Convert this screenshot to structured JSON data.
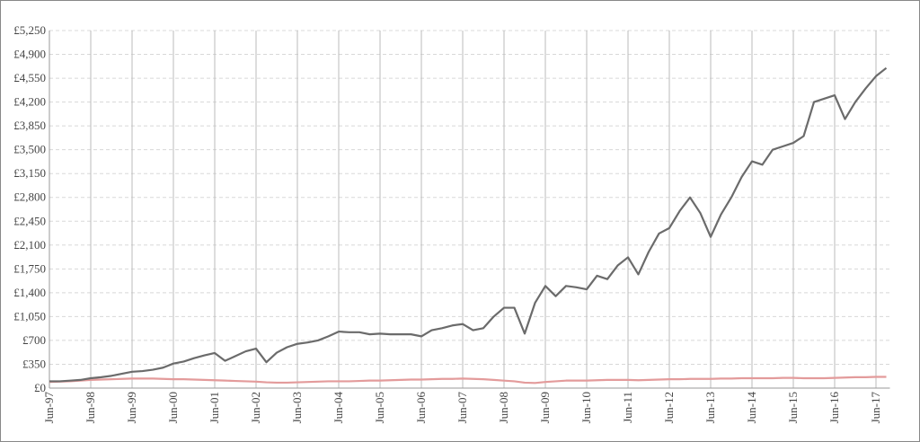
{
  "chart_data": {
    "type": "line",
    "categories": [
      "Jun-97",
      null,
      null,
      null,
      "Jun-98",
      null,
      null,
      null,
      "Jun-99",
      null,
      null,
      null,
      "Jun-00",
      null,
      null,
      null,
      "Jun-01",
      null,
      null,
      null,
      "Jun-02",
      null,
      null,
      null,
      "Jun-03",
      null,
      null,
      null,
      "Jun-04",
      null,
      null,
      null,
      "Jun-05",
      null,
      null,
      null,
      "Jun-06",
      null,
      null,
      null,
      "Jun-07",
      null,
      null,
      null,
      "Jun-08",
      null,
      null,
      null,
      "Jun-09",
      null,
      null,
      null,
      "Jun-10",
      null,
      null,
      null,
      "Jun-11",
      null,
      null,
      null,
      "Jun-12",
      null,
      null,
      null,
      "Jun-13",
      null,
      null,
      null,
      "Jun-14",
      null,
      null,
      null,
      "Jun-15",
      null,
      null,
      null,
      "Jun-16",
      null,
      null,
      null,
      "Jun-17",
      null
    ],
    "series": [
      {
        "color": "#6b6b6b",
        "values": [
          100,
          100,
          110,
          120,
          145,
          160,
          180,
          210,
          240,
          250,
          270,
          300,
          360,
          390,
          440,
          480,
          515,
          400,
          470,
          540,
          580,
          380,
          520,
          600,
          650,
          670,
          700,
          760,
          830,
          820,
          820,
          790,
          800,
          790,
          790,
          790,
          760,
          850,
          880,
          920,
          940,
          850,
          880,
          1050,
          1180,
          1180,
          800,
          1250,
          1500,
          1350,
          1500,
          1480,
          1450,
          1650,
          1600,
          1800,
          1920,
          1670,
          2000,
          2270,
          2350,
          2600,
          2800,
          2570,
          2220,
          2550,
          2800,
          3100,
          3330,
          3280,
          3500,
          3550,
          3600,
          3700,
          4200,
          4250,
          4300,
          3950,
          4200,
          4400,
          4580,
          4700
        ]
      },
      {
        "color": "#e39b9b",
        "values": [
          90,
          95,
          100,
          110,
          120,
          125,
          130,
          135,
          140,
          140,
          140,
          135,
          130,
          130,
          125,
          120,
          115,
          110,
          105,
          100,
          95,
          85,
          80,
          80,
          85,
          90,
          95,
          100,
          100,
          100,
          105,
          110,
          110,
          115,
          120,
          125,
          125,
          130,
          135,
          135,
          140,
          135,
          130,
          120,
          110,
          100,
          80,
          75,
          90,
          100,
          110,
          110,
          110,
          115,
          120,
          120,
          120,
          115,
          120,
          125,
          130,
          130,
          135,
          135,
          135,
          140,
          140,
          145,
          145,
          145,
          145,
          150,
          150,
          145,
          145,
          145,
          150,
          155,
          160,
          160,
          165,
          165
        ]
      }
    ],
    "ylim": [
      0,
      5250
    ],
    "yticks": [
      {
        "value": 0,
        "label": "£0"
      },
      {
        "value": 350,
        "label": "£350"
      },
      {
        "value": 700,
        "label": "£700"
      },
      {
        "value": 1050,
        "label": "£1,050"
      },
      {
        "value": 1400,
        "label": "£1,400"
      },
      {
        "value": 1750,
        "label": "£1,750"
      },
      {
        "value": 2100,
        "label": "£2,100"
      },
      {
        "value": 2450,
        "label": "£2,450"
      },
      {
        "value": 2800,
        "label": "£2,800"
      },
      {
        "value": 3150,
        "label": "£3,150"
      },
      {
        "value": 3500,
        "label": "£3,500"
      },
      {
        "value": 3850,
        "label": "£3,850"
      },
      {
        "value": 4200,
        "label": "£4,200"
      },
      {
        "value": 4550,
        "label": "£4,550"
      },
      {
        "value": 4900,
        "label": "£4,900"
      },
      {
        "value": 5250,
        "label": "£5,250"
      }
    ],
    "grid": true
  }
}
